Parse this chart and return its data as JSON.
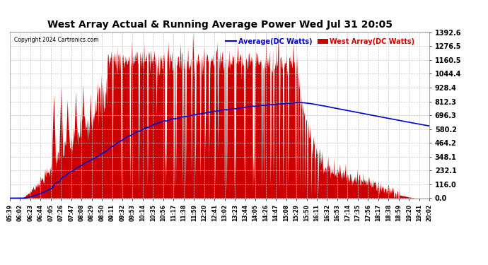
{
  "title": "West Array Actual & Running Average Power Wed Jul 31 20:05",
  "copyright": "Copyright 2024 Cartronics.com",
  "legend_average": "Average(DC Watts)",
  "legend_west": "West Array(DC Watts)",
  "yticks": [
    0.0,
    116.0,
    232.1,
    348.1,
    464.2,
    580.2,
    696.3,
    812.3,
    928.4,
    1044.4,
    1160.5,
    1276.5,
    1392.6
  ],
  "ymax": 1392.6,
  "ymin": 0.0,
  "background_color": "#ffffff",
  "grid_color": "#c8c8c8",
  "fill_color": "#cc0000",
  "avg_line_color": "#0000cc",
  "title_color": "#000000",
  "legend_avg_color": "#0000cc",
  "legend_west_color": "#cc0000",
  "xtick_labels": [
    "05:39",
    "06:02",
    "06:23",
    "06:44",
    "07:05",
    "07:26",
    "07:47",
    "08:08",
    "08:29",
    "08:50",
    "09:11",
    "09:32",
    "09:53",
    "10:14",
    "10:35",
    "10:56",
    "11:17",
    "11:38",
    "11:59",
    "12:20",
    "12:41",
    "13:02",
    "13:23",
    "13:44",
    "14:05",
    "14:26",
    "14:47",
    "15:08",
    "15:29",
    "15:50",
    "16:11",
    "16:32",
    "16:53",
    "17:14",
    "17:35",
    "17:56",
    "18:17",
    "18:38",
    "18:59",
    "19:20",
    "19:41",
    "20:02"
  ]
}
